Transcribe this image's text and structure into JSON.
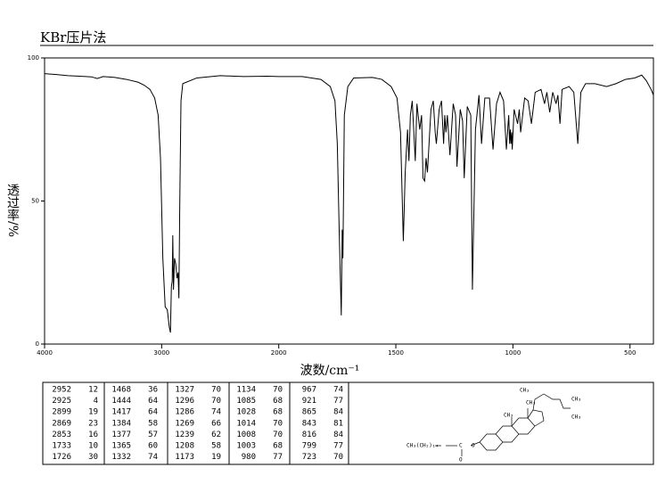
{
  "chart_data": {
    "type": "line",
    "title": "KBr压片法",
    "xlabel": "波数/cm⁻¹",
    "ylabel": "透过率/%",
    "xlim": [
      4000,
      400
    ],
    "x_break": 2000,
    "ylim": [
      0,
      100
    ],
    "xticks": [
      4000,
      3000,
      2000,
      1500,
      1000,
      500
    ],
    "yticks": [
      0,
      50,
      100
    ],
    "color": "#000000",
    "x": [
      4000,
      3900,
      3800,
      3700,
      3600,
      3550,
      3500,
      3400,
      3300,
      3200,
      3150,
      3100,
      3060,
      3030,
      3010,
      2990,
      2970,
      2952,
      2935,
      2925,
      2917,
      2910,
      2905,
      2899,
      2890,
      2880,
      2869,
      2860,
      2853,
      2845,
      2835,
      2820,
      2700,
      2500,
      2300,
      2100,
      2000,
      1900,
      1820,
      1780,
      1760,
      1750,
      1742,
      1733,
      1729,
      1726,
      1720,
      1705,
      1680,
      1600,
      1560,
      1520,
      1495,
      1480,
      1468,
      1460,
      1450,
      1444,
      1438,
      1430,
      1417,
      1410,
      1398,
      1390,
      1384,
      1377,
      1371,
      1365,
      1350,
      1340,
      1332,
      1327,
      1315,
      1305,
      1296,
      1291,
      1286,
      1280,
      1269,
      1255,
      1245,
      1239,
      1225,
      1215,
      1208,
      1195,
      1180,
      1173,
      1160,
      1145,
      1134,
      1120,
      1100,
      1085,
      1070,
      1055,
      1040,
      1028,
      1018,
      1014,
      1011,
      1008,
      1005,
      1003,
      995,
      980,
      973,
      967,
      950,
      935,
      921,
      905,
      880,
      865,
      855,
      843,
      830,
      816,
      808,
      799,
      790,
      760,
      740,
      723,
      710,
      690,
      650,
      600,
      560,
      520,
      480,
      450,
      430,
      410,
      400
    ],
    "values": [
      94.5,
      94.2,
      93.8,
      93.6,
      93.4,
      92.8,
      93.5,
      93.2,
      92.5,
      91.5,
      90.5,
      89,
      86,
      80,
      65,
      30,
      13,
      12,
      6,
      4,
      20,
      22,
      38,
      19,
      30,
      28,
      23,
      25,
      16,
      50,
      85,
      91,
      93,
      93.8,
      93.5,
      93.6,
      93.5,
      93.5,
      92.5,
      90,
      85,
      70,
      40,
      10,
      40,
      30,
      80,
      90,
      93,
      93.2,
      92.5,
      90,
      86,
      74,
      36,
      60,
      75,
      64,
      80,
      85,
      64,
      84,
      75,
      80,
      58,
      57,
      65,
      60,
      82,
      85,
      74,
      70,
      82,
      85,
      70,
      80,
      74,
      80,
      66,
      84,
      80,
      62,
      82,
      78,
      58,
      83,
      80,
      19,
      75,
      87,
      70,
      86,
      86,
      68,
      84,
      88,
      85,
      68,
      80,
      70,
      75,
      70,
      74,
      68,
      82,
      77,
      82,
      74,
      86,
      85,
      77,
      88,
      89,
      84,
      88,
      81,
      88,
      84,
      87,
      77,
      89,
      90,
      88,
      70,
      88,
      91,
      91,
      90,
      91,
      92.5,
      93,
      94,
      92,
      89,
      87
    ]
  },
  "peak_table": [
    [
      [
        "2952",
        "12"
      ],
      [
        "2925",
        "4"
      ],
      [
        "2899",
        "19"
      ],
      [
        "2869",
        "23"
      ],
      [
        "2853",
        "16"
      ],
      [
        "1733",
        "10"
      ],
      [
        "1726",
        "30"
      ]
    ],
    [
      [
        "1468",
        "36"
      ],
      [
        "1444",
        "64"
      ],
      [
        "1417",
        "64"
      ],
      [
        "1384",
        "58"
      ],
      [
        "1377",
        "57"
      ],
      [
        "1365",
        "60"
      ],
      [
        "1332",
        "74"
      ]
    ],
    [
      [
        "1327",
        "70"
      ],
      [
        "1296",
        "70"
      ],
      [
        "1286",
        "74"
      ],
      [
        "1269",
        "66"
      ],
      [
        "1239",
        "62"
      ],
      [
        "1208",
        "58"
      ],
      [
        "1173",
        "19"
      ]
    ],
    [
      [
        "1134",
        "70"
      ],
      [
        "1085",
        "68"
      ],
      [
        "1028",
        "68"
      ],
      [
        "1014",
        "70"
      ],
      [
        "1008",
        "70"
      ],
      [
        "1003",
        "68"
      ],
      [
        "980",
        "77"
      ]
    ],
    [
      [
        "967",
        "74"
      ],
      [
        "921",
        "77"
      ],
      [
        "865",
        "84"
      ],
      [
        "843",
        "81"
      ],
      [
        "816",
        "84"
      ],
      [
        "799",
        "77"
      ],
      [
        "723",
        "70"
      ]
    ]
  ],
  "structure": {
    "labels": [
      "CH₃",
      "CH₃",
      "CH₃",
      "CH₃",
      "CH₃",
      "CH₃(CH₂)₁₄",
      "C",
      "O",
      "O"
    ]
  }
}
